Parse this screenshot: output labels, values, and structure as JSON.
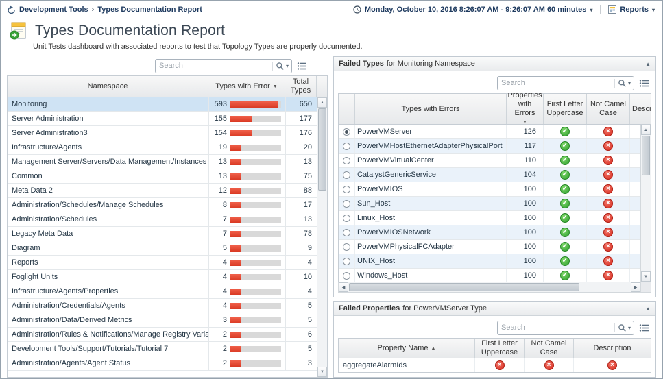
{
  "breadcrumb": {
    "parent": "Development Tools",
    "separator": "›",
    "current": "Types Documentation Report"
  },
  "timebar": {
    "range": "Monday, October 10, 2016 8:26:07 AM - 9:26:07 AM 60 minutes",
    "reports_label": "Reports"
  },
  "header": {
    "title": "Types Documentation Report",
    "subtitle": "Unit Tests dashboard with associated reports to test that Topology Types are properly documented."
  },
  "icons": {
    "caret_down": "▾",
    "collapse_up": "▲",
    "sort_desc": "▼",
    "sort_asc": "▲",
    "scroll_up": "▲",
    "scroll_down": "▼",
    "scroll_left": "◀",
    "scroll_right": "▶",
    "check": "✓",
    "cross": "×"
  },
  "left_table": {
    "search_placeholder": "Search",
    "columns": [
      "Namespace",
      "Types with Error",
      "Total Types"
    ],
    "rows": [
      {
        "namespace": "Monitoring",
        "errors": 593,
        "total": 650,
        "selected": true
      },
      {
        "namespace": "Server Administration",
        "errors": 155,
        "total": 177
      },
      {
        "namespace": "Server Administration3",
        "errors": 154,
        "total": 176
      },
      {
        "namespace": "Infrastructure/Agents",
        "errors": 19,
        "total": 20
      },
      {
        "namespace": "Management Server/Servers/Data Management/Instances",
        "errors": 13,
        "total": 13
      },
      {
        "namespace": "Common",
        "errors": 13,
        "total": 75
      },
      {
        "namespace": "Meta Data 2",
        "errors": 12,
        "total": 88
      },
      {
        "namespace": "Administration/Schedules/Manage Schedules",
        "errors": 8,
        "total": 17
      },
      {
        "namespace": "Administration/Schedules",
        "errors": 7,
        "total": 13
      },
      {
        "namespace": "Legacy Meta Data",
        "errors": 7,
        "total": 78
      },
      {
        "namespace": "Diagram",
        "errors": 5,
        "total": 9
      },
      {
        "namespace": "Reports",
        "errors": 4,
        "total": 4
      },
      {
        "namespace": "Foglight Units",
        "errors": 4,
        "total": 10
      },
      {
        "namespace": "Infrastructure/Agents/Properties",
        "errors": 4,
        "total": 4
      },
      {
        "namespace": "Administration/Credentials/Agents",
        "errors": 4,
        "total": 5
      },
      {
        "namespace": "Administration/Data/Derived Metrics",
        "errors": 3,
        "total": 5
      },
      {
        "namespace": "Administration/Rules & Notifications/Manage Registry Variables",
        "errors": 2,
        "total": 6
      },
      {
        "namespace": "Development Tools/Support/Tutorials/Tutorial 7",
        "errors": 2,
        "total": 5
      },
      {
        "namespace": "Administration/Agents/Agent Status",
        "errors": 2,
        "total": 3
      }
    ]
  },
  "failed_types_panel": {
    "title_bold": "Failed Types",
    "title_rest": "for Monitoring Namespace",
    "search_placeholder": "Search",
    "columns": [
      "Types with Errors",
      "Properties with Errors",
      "First Letter Uppercase",
      "Not Camel Case",
      "Description"
    ],
    "rows": [
      {
        "type": "PowerVMServer",
        "properties_with_errors": 126,
        "first_letter_uppercase": "pass",
        "not_camel_case": "fail",
        "selected": true
      },
      {
        "type": "PowerVMHostEthernetAdapterPhysicalPort",
        "properties_with_errors": 117,
        "first_letter_uppercase": "pass",
        "not_camel_case": "fail"
      },
      {
        "type": "PowerVMVirtualCenter",
        "properties_with_errors": 110,
        "first_letter_uppercase": "pass",
        "not_camel_case": "fail"
      },
      {
        "type": "CatalystGenericService",
        "properties_with_errors": 104,
        "first_letter_uppercase": "pass",
        "not_camel_case": "fail"
      },
      {
        "type": "PowerVMIOS",
        "properties_with_errors": 100,
        "first_letter_uppercase": "pass",
        "not_camel_case": "fail"
      },
      {
        "type": "Sun_Host",
        "properties_with_errors": 100,
        "first_letter_uppercase": "pass",
        "not_camel_case": "fail"
      },
      {
        "type": "Linux_Host",
        "properties_with_errors": 100,
        "first_letter_uppercase": "pass",
        "not_camel_case": "fail"
      },
      {
        "type": "PowerVMIOSNetwork",
        "properties_with_errors": 100,
        "first_letter_uppercase": "pass",
        "not_camel_case": "fail"
      },
      {
        "type": "PowerVMPhysicalFCAdapter",
        "properties_with_errors": 100,
        "first_letter_uppercase": "pass",
        "not_camel_case": "fail"
      },
      {
        "type": "UNIX_Host",
        "properties_with_errors": 100,
        "first_letter_uppercase": "pass",
        "not_camel_case": "fail"
      },
      {
        "type": "Windows_Host",
        "properties_with_errors": 100,
        "first_letter_uppercase": "pass",
        "not_camel_case": "fail"
      }
    ]
  },
  "failed_properties_panel": {
    "title_bold": "Failed Properties",
    "title_rest": "for PowerVMServer Type",
    "search_placeholder": "Search",
    "columns": [
      "Property Name",
      "First Letter Uppercase",
      "Not Camel Case",
      "Description"
    ],
    "rows": [
      {
        "property": "aggregateAlarmIds",
        "first_letter_uppercase": "fail",
        "not_camel_case": "fail",
        "description": "fail"
      }
    ]
  }
}
